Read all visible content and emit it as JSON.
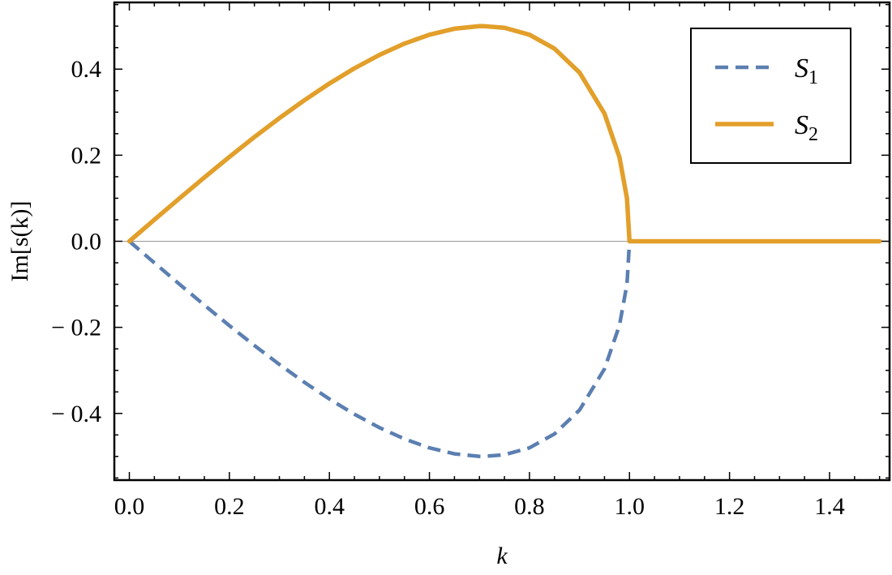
{
  "chart_data": {
    "type": "line",
    "title": "",
    "xlabel": "k",
    "ylabel": "Im[s(k)]",
    "xlim": [
      -0.03,
      1.52
    ],
    "ylim": [
      -0.555,
      0.555
    ],
    "x_ticks": [
      0.0,
      0.2,
      0.4,
      0.6,
      0.8,
      1.0,
      1.2,
      1.4
    ],
    "x_tick_labels": [
      "0.0",
      "0.2",
      "0.4",
      "0.6",
      "0.8",
      "1.0",
      "1.2",
      "1.4"
    ],
    "y_ticks": [
      -0.4,
      -0.2,
      0.0,
      0.2,
      0.4
    ],
    "y_tick_labels": [
      "− 0.4",
      "− 0.2",
      "0.0",
      "0.2",
      "0.4"
    ],
    "grid": false,
    "zero_line": true,
    "legend_position": "top-right",
    "series": [
      {
        "name": "S",
        "name_subscript": "1",
        "color": "#5b7fb1",
        "style": "dashed",
        "x": [
          0.0,
          0.05,
          0.1,
          0.15,
          0.2,
          0.25,
          0.3,
          0.35,
          0.4,
          0.45,
          0.5,
          0.55,
          0.6,
          0.65,
          0.7,
          0.7071,
          0.75,
          0.8,
          0.85,
          0.9,
          0.95,
          0.98,
          0.995,
          1.0
        ],
        "y": [
          0.0,
          -0.05,
          -0.0995,
          -0.1483,
          -0.196,
          -0.2421,
          -0.2862,
          -0.3277,
          -0.3666,
          -0.4019,
          -0.433,
          -0.4593,
          -0.48,
          -0.4939,
          -0.4999,
          -0.5,
          -0.4961,
          -0.48,
          -0.4477,
          -0.3923,
          -0.2966,
          -0.1951,
          -0.0995,
          0.0
        ]
      },
      {
        "name": "S",
        "name_subscript": "2",
        "color": "#e29f2a",
        "style": "solid",
        "x": [
          0.0,
          0.05,
          0.1,
          0.15,
          0.2,
          0.25,
          0.3,
          0.35,
          0.4,
          0.45,
          0.5,
          0.55,
          0.6,
          0.65,
          0.7,
          0.7071,
          0.75,
          0.8,
          0.85,
          0.9,
          0.95,
          0.98,
          0.995,
          1.0,
          1.1,
          1.2,
          1.3,
          1.4,
          1.5
        ],
        "y": [
          0.0,
          0.05,
          0.0995,
          0.1483,
          0.196,
          0.2421,
          0.2862,
          0.3277,
          0.3666,
          0.4019,
          0.433,
          0.4593,
          0.48,
          0.4939,
          0.4999,
          0.5,
          0.4961,
          0.48,
          0.4477,
          0.3923,
          0.2966,
          0.1951,
          0.0995,
          0.0,
          0.0,
          0.0,
          0.0,
          0.0,
          0.0
        ]
      }
    ]
  }
}
